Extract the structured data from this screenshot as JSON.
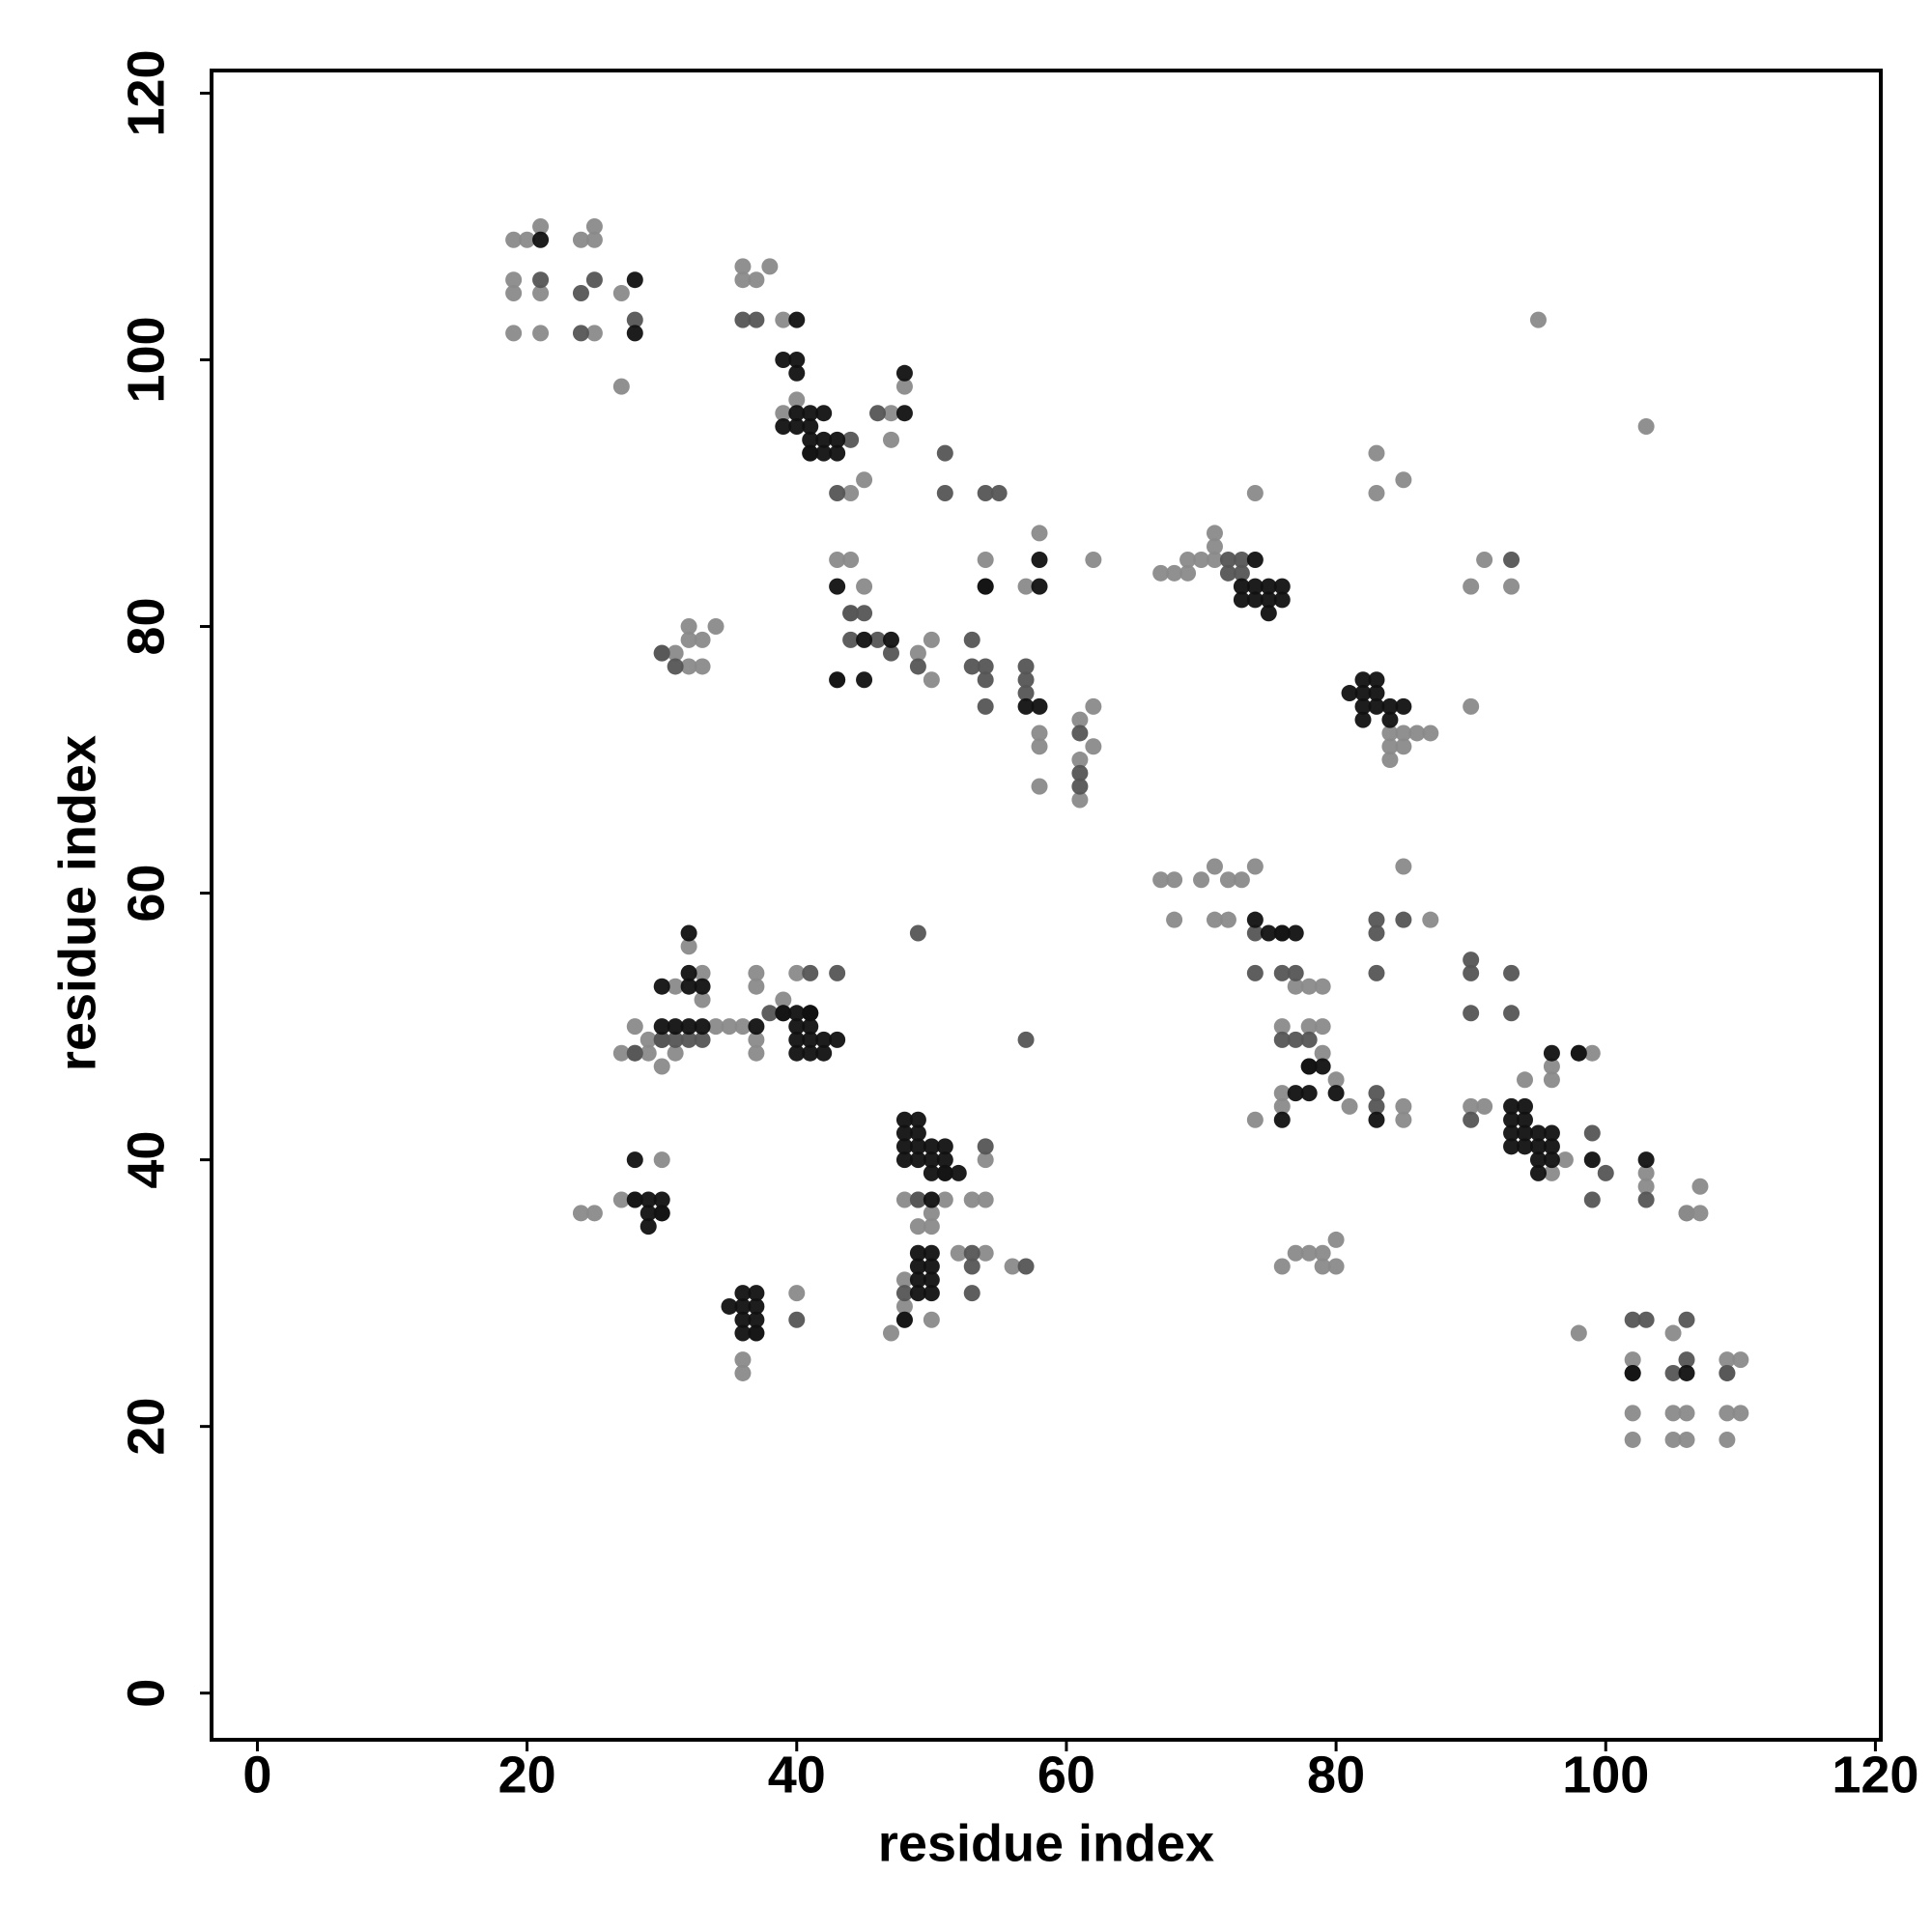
{
  "chart_data": {
    "type": "scatter",
    "xlabel": "residue index",
    "ylabel": "residue index",
    "xlim": [
      -3.4,
      120.4
    ],
    "ylim": [
      -3.5,
      121.7
    ],
    "xticks": [
      0,
      20,
      40,
      60,
      80,
      100,
      120
    ],
    "yticks": [
      0,
      20,
      40,
      60,
      80,
      100,
      120
    ],
    "series": [
      {
        "color": "#8a8a8a",
        "x": [
          19,
          20,
          21,
          24,
          25,
          25,
          19,
          19,
          21,
          27,
          19,
          21,
          25,
          27,
          36,
          36,
          37,
          38,
          39,
          40,
          39,
          47,
          48,
          47,
          45,
          44,
          58,
          57,
          54,
          62,
          43,
          44,
          45,
          44,
          49,
          50,
          50,
          43,
          58,
          58,
          58,
          61,
          61,
          61,
          62,
          62,
          30,
          31,
          32,
          32,
          32,
          33,
          33,
          34,
          67,
          68,
          69,
          69,
          70,
          71,
          71,
          71,
          74,
          83,
          85,
          83,
          90,
          91,
          93,
          90,
          95,
          103,
          84,
          85,
          86,
          87,
          84,
          85,
          84,
          67,
          68,
          70,
          71,
          72,
          73,
          74,
          68,
          71,
          72,
          77,
          78,
          79,
          76,
          78,
          79,
          79,
          76,
          80,
          81,
          76,
          74,
          85,
          87,
          85,
          85,
          90,
          91,
          94,
          96,
          96,
          97,
          96,
          98,
          99,
          103,
          103,
          106,
          107,
          106,
          107,
          98,
          102,
          102,
          102,
          105,
          105,
          106,
          105,
          106,
          109,
          110,
          109,
          110,
          109,
          109,
          77,
          78,
          79,
          76,
          80,
          80,
          79,
          32,
          33,
          31,
          33,
          28,
          34,
          35,
          36,
          29,
          31,
          27,
          28,
          29,
          30,
          37,
          37,
          39,
          37,
          37,
          40,
          28,
          30,
          27,
          24,
          25,
          49,
          48,
          51,
          53,
          54,
          54,
          50,
          50,
          49,
          48,
          48,
          48,
          47,
          50,
          52,
          54,
          56,
          36,
          36,
          37,
          40
        ],
        "y": [
          109,
          109,
          110,
          109,
          110,
          109,
          106,
          105,
          105,
          105,
          102,
          102,
          102,
          98,
          107,
          106,
          106,
          107,
          103,
          97,
          96,
          96,
          98,
          94,
          91,
          90,
          87,
          83,
          85,
          85,
          85,
          85,
          83,
          81,
          78,
          79,
          76,
          76,
          72,
          71,
          68,
          73,
          70,
          67,
          74,
          71,
          78,
          78,
          80,
          79,
          77,
          79,
          77,
          80,
          84,
          84,
          84,
          85,
          85,
          85,
          86,
          87,
          90,
          90,
          91,
          93,
          83,
          85,
          83,
          74,
          103,
          95,
          72,
          72,
          72,
          72,
          71,
          71,
          70,
          61,
          61,
          61,
          62,
          61,
          61,
          62,
          58,
          58,
          58,
          53,
          53,
          53,
          50,
          50,
          50,
          48,
          44,
          46,
          44,
          45,
          43,
          62,
          58,
          44,
          43,
          44,
          44,
          46,
          47,
          46,
          40,
          39,
          48,
          48,
          39,
          38,
          36,
          38,
          36,
          36,
          27,
          25,
          21,
          19,
          27,
          21,
          21,
          19,
          19,
          25,
          25,
          24,
          21,
          21,
          19,
          33,
          33,
          33,
          32,
          34,
          32,
          32,
          56,
          54,
          53,
          52,
          50,
          50,
          50,
          50,
          49,
          48,
          48,
          48,
          48,
          47,
          54,
          53,
          52,
          49,
          48,
          54,
          37,
          40,
          37,
          36,
          36,
          37,
          37,
          37,
          37,
          37,
          40,
          36,
          35,
          35,
          31,
          29,
          28,
          27,
          28,
          33,
          33,
          32,
          25,
          24,
          27,
          30
        ]
      },
      {
        "color": "#555555",
        "x": [
          21,
          24,
          25,
          24,
          28,
          36,
          37,
          41,
          44,
          43,
          46,
          51,
          54,
          51,
          55,
          54,
          57,
          44,
          45,
          44,
          46,
          47,
          49,
          53,
          54,
          53,
          54,
          54,
          57,
          57,
          61,
          61,
          61,
          31,
          30,
          72,
          72,
          73,
          73,
          93,
          76,
          74,
          74,
          76,
          77,
          83,
          83,
          85,
          83,
          83,
          83,
          90,
          90,
          93,
          90,
          93,
          90,
          99,
          100,
          99,
          102,
          103,
          106,
          103,
          102,
          105,
          106,
          109,
          76,
          77,
          78,
          78,
          28,
          30,
          32,
          33,
          31,
          30,
          38,
          39,
          41,
          43,
          49,
          57,
          30,
          51,
          54,
          53,
          53,
          53,
          57,
          49,
          48,
          40
        ],
        "y": [
          106,
          105,
          106,
          102,
          103,
          103,
          103,
          93,
          94,
          90,
          96,
          93,
          90,
          90,
          90,
          83,
          77,
          81,
          81,
          79,
          79,
          78,
          77,
          79,
          77,
          77,
          76,
          74,
          76,
          75,
          72,
          69,
          68,
          77,
          78,
          85,
          84,
          85,
          84,
          85,
          57,
          54,
          57,
          54,
          54,
          58,
          57,
          58,
          54,
          45,
          44,
          55,
          54,
          54,
          51,
          51,
          43,
          42,
          39,
          37,
          28,
          28,
          28,
          37,
          24,
          24,
          25,
          24,
          49,
          49,
          49,
          47,
          48,
          49,
          49,
          49,
          49,
          49,
          51,
          51,
          54,
          54,
          57,
          49,
          36,
          39,
          41,
          33,
          32,
          30,
          32,
          37,
          30,
          28
        ]
      },
      {
        "color": "#111111",
        "x": [
          21,
          28,
          28,
          40,
          39,
          40,
          40,
          39,
          40,
          41,
          42,
          40,
          41,
          41,
          42,
          41,
          42,
          43,
          43,
          48,
          48,
          58,
          58,
          54,
          43,
          43,
          45,
          45,
          47,
          57,
          58,
          74,
          74,
          73,
          74,
          75,
          75,
          76,
          76,
          75,
          73,
          81,
          82,
          83,
          82,
          83,
          82,
          83,
          82,
          84,
          85,
          84,
          74,
          75,
          77,
          76,
          78,
          79,
          77,
          78,
          76,
          80,
          83,
          96,
          93,
          94,
          93,
          94,
          93,
          94,
          93,
          94,
          95,
          96,
          95,
          96,
          95,
          96,
          95,
          98,
          99,
          103,
          32,
          32,
          32,
          33,
          30,
          30,
          31,
          32,
          33,
          37,
          41,
          40,
          41,
          39,
          40,
          41,
          40,
          41,
          42,
          43,
          40,
          41,
          42,
          28,
          28,
          29,
          30,
          29,
          30,
          29,
          48,
          49,
          48,
          49,
          48,
          49,
          48,
          49,
          50,
          51,
          50,
          51,
          50,
          51,
          52,
          50,
          49,
          50,
          49,
          50,
          49,
          50,
          49,
          48,
          50,
          35,
          36,
          37,
          36,
          37,
          36,
          37,
          36,
          37,
          102,
          106
        ],
        "y": [
          109,
          106,
          102,
          103,
          100,
          100,
          99,
          95,
          96,
          96,
          96,
          95,
          95,
          94,
          94,
          93,
          93,
          93,
          94,
          96,
          99,
          85,
          83,
          83,
          83,
          76,
          79,
          76,
          79,
          74,
          74,
          85,
          83,
          83,
          82,
          83,
          82,
          83,
          82,
          81,
          82,
          75,
          76,
          76,
          75,
          75,
          74,
          74,
          73,
          73,
          74,
          74,
          58,
          57,
          57,
          57,
          47,
          47,
          45,
          45,
          43,
          45,
          43,
          48,
          44,
          44,
          43,
          43,
          42,
          42,
          41,
          41,
          42,
          42,
          41,
          41,
          40,
          40,
          39,
          48,
          40,
          40,
          57,
          54,
          53,
          53,
          53,
          50,
          50,
          50,
          50,
          50,
          51,
          51,
          51,
          51,
          50,
          50,
          49,
          49,
          49,
          49,
          48,
          48,
          48,
          40,
          37,
          37,
          37,
          36,
          36,
          35,
          43,
          43,
          42,
          42,
          41,
          41,
          40,
          40,
          41,
          41,
          40,
          40,
          39,
          39,
          39,
          37,
          33,
          33,
          32,
          32,
          31,
          31,
          30,
          28,
          30,
          29,
          30,
          30,
          29,
          29,
          28,
          28,
          27,
          27,
          24,
          24
        ]
      }
    ]
  }
}
